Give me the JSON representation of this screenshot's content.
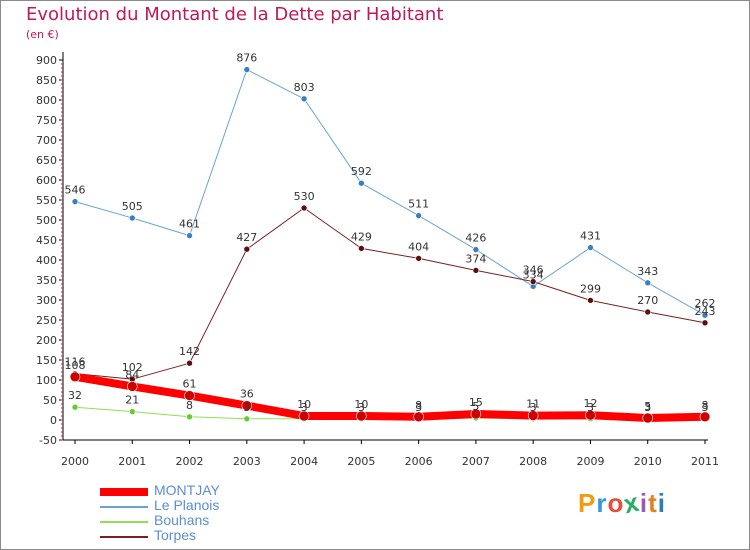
{
  "header": {
    "title": "Evolution du Montant de la Dette par Habitant",
    "unit": "(en €)"
  },
  "logo": {
    "text": "Proxiti",
    "colors": [
      "#f39c12",
      "#3498db",
      "#e74c3c",
      "#27ae60",
      "#9b59b6",
      "#e67e22",
      "#2980b9"
    ]
  },
  "chart_data": {
    "type": "line",
    "title": "Evolution du Montant de la Dette par Habitant",
    "ylabel": "(en €)",
    "xlabel": "",
    "ylim": [
      -50,
      900
    ],
    "ytick_step": 50,
    "grid": false,
    "legend_position": "bottom-left",
    "categories": [
      "2000",
      "2001",
      "2002",
      "2003",
      "2004",
      "2005",
      "2006",
      "2007",
      "2008",
      "2009",
      "2010",
      "2011"
    ],
    "series": [
      {
        "name": "MONTJAY",
        "color": "#ff0000",
        "marker": "#cc0000",
        "width": 8,
        "values": [
          108,
          84,
          61,
          36,
          10,
          10,
          8,
          15,
          11,
          12,
          5,
          8
        ]
      },
      {
        "name": "Le Planois",
        "color": "#6ca3d6",
        "marker": "#3a7fc4",
        "width": 1,
        "values": [
          546,
          505,
          461,
          876,
          803,
          592,
          511,
          426,
          334,
          431,
          343,
          262
        ]
      },
      {
        "name": "Bouhans",
        "color": "#90e050",
        "marker": "#66cc33",
        "width": 1,
        "values": [
          32,
          21,
          8,
          3,
          3,
          3,
          3,
          5,
          3,
          3,
          3,
          3
        ]
      },
      {
        "name": "Torpes",
        "color": "#7a2020",
        "marker": "#5a1010",
        "width": 1,
        "values": [
          116,
          102,
          142,
          427,
          530,
          429,
          404,
          374,
          346,
          299,
          270,
          243
        ]
      }
    ]
  }
}
